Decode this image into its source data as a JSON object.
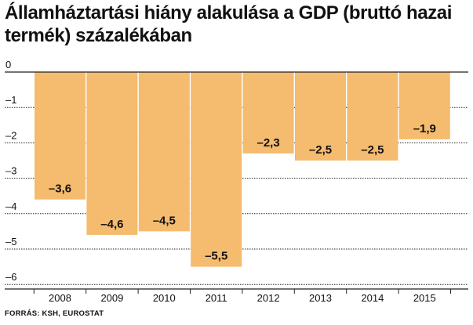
{
  "chart_data": {
    "type": "bar",
    "title": "Államháztartási hiány alakulása a GDP (bruttó hazai termék) százalékában",
    "categories": [
      "2008",
      "2009",
      "2010",
      "2011",
      "2012",
      "2013",
      "2014",
      "2015"
    ],
    "values": [
      -3.6,
      -4.6,
      -4.5,
      -5.5,
      -2.3,
      -2.5,
      -2.5,
      -1.9
    ],
    "value_labels": [
      "–3,6",
      "–4,6",
      "–4,5",
      "–5,5",
      "–2,3",
      "–2,5",
      "–2,5",
      "–1,9"
    ],
    "y_ticks": [
      0,
      -1,
      -2,
      -3,
      -4,
      -5,
      -6
    ],
    "y_tick_labels": [
      "0",
      "–1",
      "–2",
      "–3",
      "–4",
      "–5",
      "–6"
    ],
    "ylim": [
      -6,
      0
    ],
    "grid": true,
    "xlabel": "",
    "ylabel": "",
    "bar_color": "#f5bb6e",
    "gridline_color": "#222222",
    "source": "FORRÁS: KSH, EUROSTAT"
  }
}
